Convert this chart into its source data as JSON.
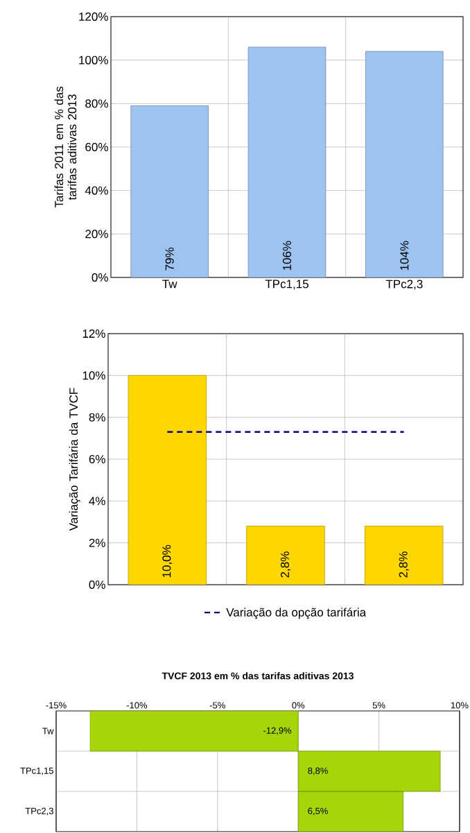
{
  "chart_data": [
    {
      "type": "bar",
      "ylabel": "Tarifas 2011 em % das tarifas aditivas 2013",
      "categories": [
        "Tw",
        "TPc1,15",
        "TPc2,3"
      ],
      "values": [
        79,
        106,
        104
      ],
      "value_labels": [
        "79%",
        "106%",
        "104%"
      ],
      "color": "#9dc3f0",
      "ylim": [
        0,
        120
      ],
      "yticks": [
        {
          "value": 0,
          "label": "0%"
        },
        {
          "value": 20,
          "label": "20%"
        },
        {
          "value": 40,
          "label": "40%"
        },
        {
          "value": 60,
          "label": "60%"
        },
        {
          "value": 80,
          "label": "80%"
        },
        {
          "value": 100,
          "label": "100%"
        },
        {
          "value": 120,
          "label": "120%"
        }
      ],
      "grid": true
    },
    {
      "type": "bar",
      "ylabel": "Variação Tarifária da TVCF",
      "categories": [
        null,
        null,
        null
      ],
      "series": [
        {
          "color": "#ffd700",
          "values": [
            10.0,
            2.8,
            2.8
          ],
          "value_labels": [
            "10,0%",
            "2,8%",
            "2,8%"
          ]
        },
        {
          "type": "line",
          "name": "Variação da opção tarifária",
          "color": "#000080",
          "values": [
            7.3,
            7.3,
            7.3
          ],
          "line_style": "dashed"
        }
      ],
      "ylim": [
        0,
        12
      ],
      "yticks": [
        {
          "value": 0,
          "label": "0%"
        },
        {
          "value": 2,
          "label": "2%"
        },
        {
          "value": 4,
          "label": "4%"
        },
        {
          "value": 6,
          "label": "6%"
        },
        {
          "value": 8,
          "label": "8%"
        },
        {
          "value": 10,
          "label": "10%"
        },
        {
          "value": 12,
          "label": "12%"
        }
      ],
      "grid": true,
      "legend": "bottom"
    },
    {
      "type": "bar",
      "orientation": "horizontal",
      "title": "TVCF 2013 em % das tarifas aditivas 2013",
      "categories": [
        "Tw",
        "TPc1,15",
        "TPc2,3"
      ],
      "values": [
        -12.9,
        8.8,
        6.5
      ],
      "value_labels": [
        "-12,9%",
        "8,8%",
        "6,5%"
      ],
      "color": "#a6d608",
      "xlim": [
        -15,
        10
      ],
      "xticks": [
        {
          "value": -15,
          "label": "-15%"
        },
        {
          "value": -10,
          "label": "-10%"
        },
        {
          "value": -5,
          "label": "-5%"
        },
        {
          "value": 0,
          "label": "0%"
        },
        {
          "value": 5,
          "label": "5%"
        },
        {
          "value": 10,
          "label": "10%"
        }
      ],
      "grid": true
    }
  ]
}
